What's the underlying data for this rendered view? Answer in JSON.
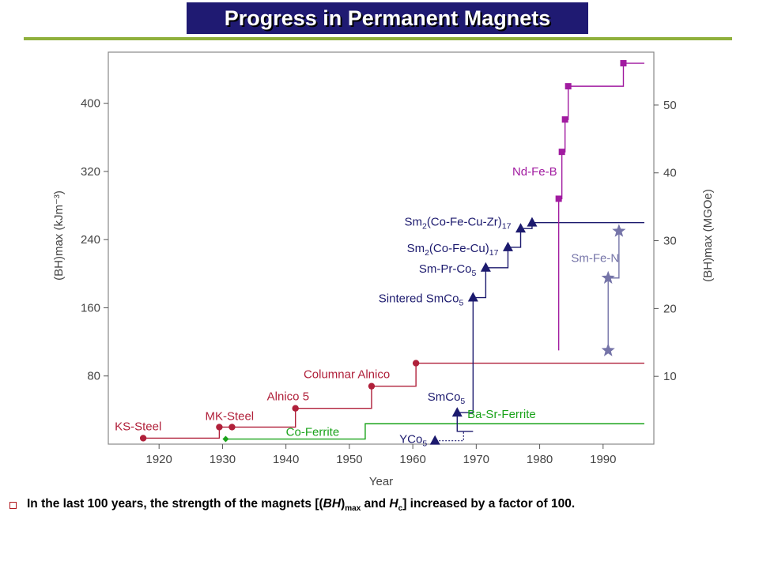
{
  "slide": {
    "title": "Progress in Permanent Magnets",
    "bullet": {
      "part1": "In the last 100 years, the strength of the magnets [(",
      "bh": "BH",
      "max": "max",
      "and": " and ",
      "h": "H",
      "c": "c",
      "part2": "] increased  by a factor of 100."
    }
  },
  "chart_data": {
    "type": "line",
    "xlabel": "Year",
    "ylabel_left": "(BH)max (kJm⁻³)",
    "ylabel_right": "(BH)max (MGOe)",
    "xlim": [
      1912,
      1998
    ],
    "ylim_left": [
      0,
      460
    ],
    "ylim_right": [
      0,
      57.8
    ],
    "x_ticks": [
      1920,
      1930,
      1940,
      1950,
      1960,
      1970,
      1980,
      1990
    ],
    "y_ticks_left": [
      80,
      160,
      240,
      320,
      400
    ],
    "y_ticks_right": [
      10,
      20,
      30,
      40,
      50
    ],
    "grid": false,
    "colors": {
      "steel_alnico": "#b0203a",
      "ferrite": "#1aa31a",
      "samarium_cobalt": "#1c1a6e",
      "nd_fe_b": "#a11ba0",
      "sm_fe_n": "#7574a8"
    },
    "series": [
      {
        "key": "steel",
        "color": "#b0203a",
        "marker": "circle",
        "points": [
          [
            1917.5,
            7
          ],
          [
            1929.5,
            20
          ],
          [
            1931.5,
            20
          ],
          [
            1941.5,
            42
          ],
          [
            1953.5,
            68
          ],
          [
            1960.5,
            95
          ]
        ],
        "step_end": 1996.5,
        "labels": [
          {
            "text": "KS-Steel",
            "x": 1917.5,
            "y": 7
          },
          {
            "text": "MK-Steel",
            "x": 1931.5,
            "y": 20
          },
          {
            "text": "Alnico 5",
            "x": 1941.5,
            "y": 42
          },
          {
            "text": "Columnar Alnico",
            "x": 1953.5,
            "y": 68
          }
        ]
      },
      {
        "key": "ferrite",
        "color": "#1aa31a",
        "marker": "diamond",
        "points": [
          [
            1930.5,
            6
          ],
          [
            1952.5,
            24
          ]
        ],
        "step_end": 1996.5,
        "labels": [
          {
            "text": "Co-Ferrite",
            "x": 1940.5,
            "y": 6
          },
          {
            "text": "Ba-Sr-Ferrite",
            "x": 1974,
            "y": 24
          }
        ]
      },
      {
        "key": "smco",
        "color": "#1c1a6e",
        "marker": "triangle",
        "points": [
          [
            1967,
            37
          ],
          [
            1969.5,
            172
          ],
          [
            1971.5,
            207
          ],
          [
            1975,
            231
          ],
          [
            1977,
            253
          ],
          [
            1978.8,
            260
          ]
        ],
        "step_end": 1996.5,
        "labels": [
          {
            "text": "SmCo",
            "sub": "5",
            "x": 1967,
            "y": 37
          },
          {
            "text": "Sintered SmCo",
            "sub": "5",
            "x": 1969.5,
            "y": 172
          },
          {
            "text": "Sm-Pr-Co",
            "sub": "5",
            "x": 1971.5,
            "y": 207
          },
          {
            "text": "Sm",
            "sub": "2",
            "text2": "(Co-Fe-Cu)",
            "sub2": "17",
            "x": 1975,
            "y": 231
          },
          {
            "text": "Sm",
            "sub": "2",
            "text2": "(Co-Fe-Cu-Zr)",
            "sub2": "17",
            "x": 1977,
            "y": 260
          }
        ]
      },
      {
        "key": "yco",
        "color": "#1c1a6e",
        "marker": "triangle",
        "points": [
          [
            1963.5,
            4
          ]
        ],
        "dotted_to": 1968,
        "labels": [
          {
            "text": "YCo",
            "sub": "5",
            "x": 1963.5,
            "y": 4
          }
        ]
      },
      {
        "key": "ndfeb",
        "color": "#a11ba0",
        "marker": "square",
        "points": [
          [
            1983,
            288
          ],
          [
            1983.5,
            343
          ],
          [
            1984,
            381
          ],
          [
            1984.5,
            420
          ],
          [
            1993.2,
            447
          ]
        ],
        "step_start": 1983,
        "step_start_y": 110,
        "step_end": 1996.5,
        "labels": [
          {
            "text": "Nd-Fe-B",
            "x": 1983,
            "y": 343
          }
        ]
      },
      {
        "key": "smfen",
        "color": "#7574a8",
        "marker": "star",
        "points": [
          [
            1990.8,
            110
          ],
          [
            1990.8,
            195
          ],
          [
            1992.5,
            250
          ]
        ],
        "labels": [
          {
            "text": "Sm-Fe-N",
            "x": 1990.8,
            "y": 195
          }
        ]
      }
    ]
  }
}
